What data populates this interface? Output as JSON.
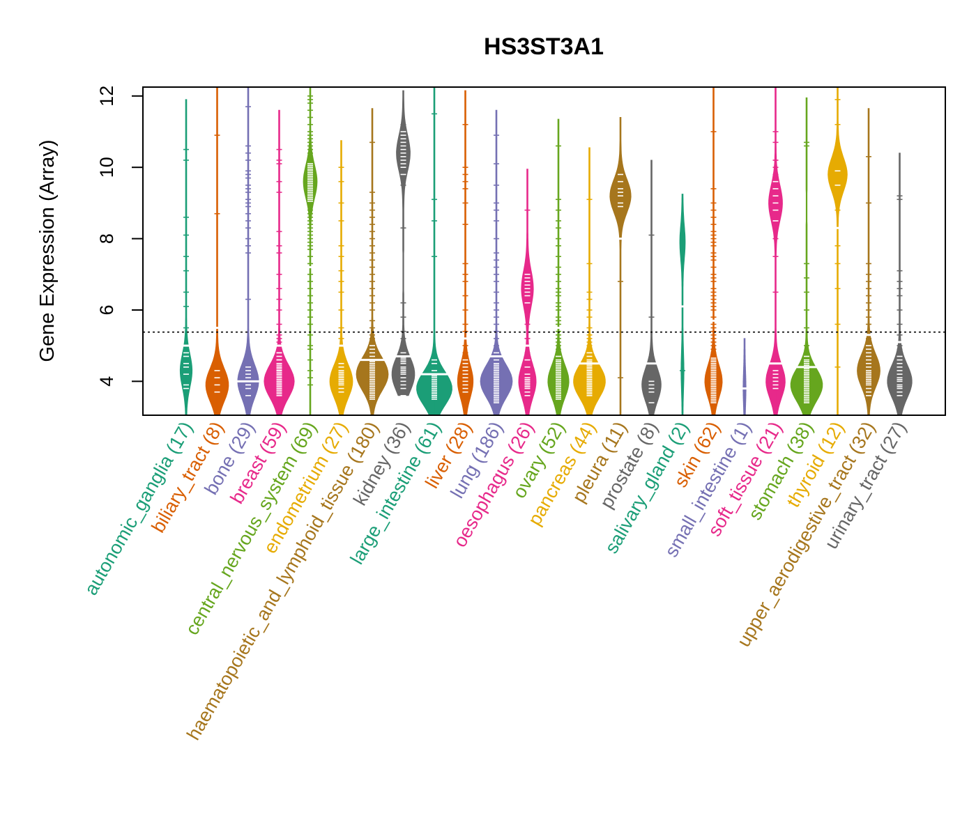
{
  "chart_data": {
    "type": "violin",
    "title": "HS3ST3A1",
    "ylabel": "Gene Expression (Array)",
    "xlabel": "",
    "ylim": [
      3.05,
      12.25
    ],
    "yticks": [
      4,
      6,
      8,
      10,
      12
    ],
    "reference_line": 5.38,
    "grid": false,
    "categories": [
      {
        "name": "autonomic_ganglia",
        "n": 17,
        "label": "autonomic_ganglia (17)",
        "color": "#1B9E77",
        "min": 3.05,
        "max": 11.9,
        "median": 5.0,
        "mode": 4.3,
        "peak": 0.3,
        "points": [
          3.8,
          3.9,
          4.2,
          4.4,
          4.5,
          4.8,
          5.0,
          5.5,
          6.1,
          6.5,
          7.1,
          7.5,
          8.1,
          8.6,
          10.2,
          10.5,
          4.7
        ]
      },
      {
        "name": "biliary_tract",
        "n": 8,
        "label": "biliary_tract (8)",
        "color": "#D95F02",
        "min": 3.05,
        "max": 12.25,
        "median": 5.5,
        "mode": 3.9,
        "peak": 0.6,
        "points": [
          3.7,
          3.9,
          4.1,
          4.3,
          5.5,
          8.7,
          10.9,
          12.3
        ]
      },
      {
        "name": "bone",
        "n": 29,
        "label": "bone (29)",
        "color": "#7570B3",
        "min": 3.05,
        "max": 12.25,
        "median": 4.0,
        "mode": 4.0,
        "peak": 0.55,
        "points": [
          3.6,
          3.8,
          3.9,
          4.0,
          4.1,
          4.2,
          4.3,
          6.3,
          7.6,
          7.8,
          8.0,
          8.3,
          8.5,
          8.7,
          8.9,
          9.0,
          9.1,
          9.3,
          9.4,
          9.5,
          9.7,
          9.8,
          9.9,
          10.2,
          10.4,
          10.6,
          11.7,
          3.9,
          4.4
        ]
      },
      {
        "name": "breast",
        "n": 59,
        "label": "breast (59)",
        "color": "#E7298A",
        "min": 3.05,
        "max": 11.6,
        "median": 5.0,
        "mode": 4.0,
        "peak": 0.8,
        "points": [
          3.6,
          3.7,
          3.8,
          3.9,
          4.0,
          4.0,
          4.1,
          4.2,
          4.3,
          4.4,
          4.5,
          4.6,
          4.7,
          4.8,
          4.9,
          5.0,
          3.65,
          3.75,
          3.85,
          3.95,
          4.05,
          4.15,
          4.25,
          4.35,
          4.45,
          5.1,
          5.3,
          5.6,
          6.0,
          6.3,
          6.6,
          7.0,
          7.6,
          7.8,
          8.2,
          9.3,
          9.6,
          10.1,
          10.2,
          10.5,
          4.0,
          4.1,
          4.2,
          3.9,
          3.8,
          4.6,
          5.2,
          4.3,
          4.5,
          3.7,
          4.9,
          4.1,
          4.0,
          3.9,
          4.2,
          4.4,
          4.3,
          4.6,
          4.8
        ]
      },
      {
        "name": "central_nervous_system",
        "n": 69,
        "label": "central_nervous_system (69)",
        "color": "#66A61E",
        "min": 3.05,
        "max": 12.25,
        "median": 7.2,
        "mode": 9.6,
        "peak": 0.35,
        "points": [
          3.9,
          4.1,
          4.6,
          4.9,
          5.3,
          5.6,
          6.0,
          6.4,
          6.8,
          7.0,
          7.2,
          7.5,
          7.8,
          8.0,
          8.2,
          8.4,
          8.6,
          8.8,
          9.0,
          9.1,
          9.2,
          9.3,
          9.4,
          9.5,
          9.6,
          9.7,
          9.8,
          9.9,
          10.0,
          10.1,
          10.3,
          10.5,
          10.7,
          10.9,
          11.2,
          11.6,
          11.8,
          12.0,
          4.3,
          5.0,
          6.2,
          6.6,
          7.3,
          7.7,
          8.1,
          8.3,
          8.5,
          8.7,
          8.9,
          9.05,
          9.15,
          9.25,
          9.35,
          9.45,
          9.55,
          9.65,
          9.75,
          9.85,
          9.95,
          10.05,
          10.2,
          10.4,
          10.6,
          10.8,
          11.0,
          11.4,
          11.9,
          5.8,
          7.9
        ]
      },
      {
        "name": "endometrium",
        "n": 27,
        "label": "endometrium (27)",
        "color": "#E6AB02",
        "min": 3.05,
        "max": 10.75,
        "median": 5.0,
        "mode": 4.0,
        "peak": 0.6,
        "points": [
          3.7,
          3.8,
          3.9,
          4.0,
          4.1,
          4.2,
          4.3,
          4.4,
          4.5,
          4.8,
          5.0,
          5.5,
          6.0,
          6.5,
          6.8,
          7.1,
          7.5,
          7.8,
          8.5,
          9.0,
          9.6,
          10.0,
          4.05,
          4.15,
          3.95,
          4.25,
          5.2
        ]
      },
      {
        "name": "haematopoietic_and_lymphoid_tissue",
        "n": 180,
        "label": "haematopoietic_and_lymphoid_tissue (180)",
        "color": "#A6761D",
        "min": 3.05,
        "max": 11.65,
        "median": 4.6,
        "mode": 4.2,
        "peak": 0.85,
        "points": [
          3.5,
          3.6,
          3.7,
          3.8,
          3.9,
          4.0,
          4.1,
          4.2,
          4.3,
          4.4,
          4.5,
          4.6,
          4.7,
          4.8,
          4.9,
          5.0,
          5.1,
          5.2,
          5.3,
          5.5,
          5.7,
          6.0,
          6.2,
          6.4,
          6.6,
          6.8,
          7.0,
          7.2,
          7.4,
          7.6,
          7.8,
          8.0,
          8.2,
          8.4,
          8.6,
          8.8,
          9.0,
          9.3,
          10.7,
          3.55,
          3.65,
          3.75,
          3.85,
          3.95,
          4.05,
          4.15,
          4.25,
          4.35,
          4.45,
          4.55
        ]
      },
      {
        "name": "kidney",
        "n": 36,
        "label": "kidney (36)",
        "color": "#666666",
        "min": 3.6,
        "max": 12.15,
        "median": 4.7,
        "mode": 4.2,
        "peak": 0.6,
        "mode2": 10.4,
        "peak2": 0.35,
        "gap": [
          6.5,
          7.6
        ],
        "points": [
          3.6,
          3.8,
          4.0,
          4.1,
          4.2,
          4.3,
          4.4,
          4.5,
          4.6,
          4.7,
          4.8,
          5.0,
          5.2,
          5.4,
          5.8,
          6.2,
          8.3,
          9.5,
          9.8,
          10.0,
          10.1,
          10.2,
          10.3,
          10.4,
          10.5,
          10.6,
          10.7,
          10.8,
          10.9,
          11.0,
          11.2,
          4.25,
          4.35,
          4.55,
          4.65,
          3.9
        ]
      },
      {
        "name": "large_intestine",
        "n": 61,
        "label": "large_intestine (61)",
        "color": "#1B9E77",
        "min": 3.05,
        "max": 12.25,
        "median": 4.2,
        "mode": 3.8,
        "peak": 0.95,
        "points": [
          3.5,
          3.6,
          3.7,
          3.8,
          3.9,
          4.0,
          4.1,
          4.2,
          4.3,
          4.5,
          4.7,
          3.55,
          3.65,
          3.75,
          3.85,
          3.95,
          4.05,
          4.15,
          7.5,
          8.5,
          9.1,
          11.5,
          4.6,
          3.6,
          3.7
        ]
      },
      {
        "name": "liver",
        "n": 28,
        "label": "liver (28)",
        "color": "#D95F02",
        "min": 3.05,
        "max": 12.15,
        "median": 5.2,
        "mode": 4.0,
        "peak": 0.4,
        "points": [
          3.8,
          3.9,
          4.0,
          4.1,
          4.2,
          4.3,
          4.5,
          4.7,
          5.0,
          5.2,
          5.6,
          6.0,
          6.4,
          6.8,
          7.0,
          7.3,
          8.4,
          9.0,
          9.4,
          9.6,
          9.8,
          10.0,
          11.2,
          3.7,
          4.4,
          4.6,
          4.8,
          5.4
        ]
      },
      {
        "name": "lung",
        "n": 186,
        "label": "lung (186)",
        "color": "#7570B3",
        "min": 3.05,
        "max": 11.6,
        "median": 4.7,
        "mode": 4.0,
        "peak": 0.85,
        "points": [
          3.4,
          3.5,
          3.6,
          3.7,
          3.8,
          3.9,
          4.0,
          4.1,
          4.2,
          4.3,
          4.4,
          4.5,
          4.6,
          4.7,
          4.8,
          4.9,
          5.0,
          5.2,
          5.4,
          5.6,
          5.8,
          6.0,
          6.2,
          6.5,
          6.8,
          7.0,
          7.2,
          7.4,
          7.6,
          8.0,
          8.5,
          8.8,
          9.0,
          9.5,
          10.1,
          10.9,
          3.45,
          3.55,
          3.65,
          3.75,
          3.85,
          3.95,
          4.05,
          4.15,
          4.25,
          4.35,
          4.45
        ]
      },
      {
        "name": "oesophagus",
        "n": 26,
        "label": "oesophagus (26)",
        "color": "#E7298A",
        "min": 3.05,
        "max": 9.95,
        "median": 5.0,
        "mode": 4.0,
        "peak": 0.45,
        "mode2": 6.6,
        "peak2": 0.3,
        "points": [
          3.6,
          3.7,
          3.8,
          3.9,
          4.0,
          4.1,
          4.2,
          4.4,
          4.6,
          4.8,
          5.2,
          5.6,
          6.0,
          6.2,
          6.4,
          6.6,
          6.8,
          7.0,
          7.2,
          8.8,
          3.85,
          3.95,
          4.05,
          6.5,
          6.7,
          6.9
        ]
      },
      {
        "name": "ovary",
        "n": 52,
        "label": "ovary (52)",
        "color": "#66A61E",
        "min": 3.05,
        "max": 11.35,
        "median": 5.5,
        "mode": 4.0,
        "peak": 0.55,
        "points": [
          3.5,
          3.6,
          3.7,
          3.8,
          3.9,
          4.0,
          4.1,
          4.2,
          4.3,
          4.4,
          4.5,
          4.6,
          4.7,
          4.8,
          4.9,
          5.0,
          5.2,
          5.4,
          5.6,
          5.8,
          6.0,
          6.2,
          6.4,
          6.6,
          6.8,
          7.0,
          7.2,
          7.5,
          8.0,
          8.3,
          8.5,
          8.8,
          9.1,
          10.6,
          3.55,
          3.65,
          3.75,
          3.85,
          3.95,
          4.05,
          4.15,
          4.25,
          4.35,
          4.45,
          4.55,
          5.1,
          5.3,
          5.5,
          5.7,
          6.1,
          6.5,
          7.8
        ]
      },
      {
        "name": "pancreas",
        "n": 44,
        "label": "pancreas (44)",
        "color": "#E6AB02",
        "min": 3.05,
        "max": 10.55,
        "median": 4.5,
        "mode": 4.0,
        "peak": 0.85,
        "points": [
          3.6,
          3.7,
          3.8,
          3.9,
          4.0,
          4.1,
          4.2,
          4.3,
          4.4,
          4.5,
          4.6,
          4.7,
          4.8,
          4.9,
          5.0,
          5.2,
          5.5,
          5.8,
          6.3,
          6.5,
          7.3,
          9.1,
          3.65,
          3.75,
          3.85,
          3.95,
          4.05,
          4.15,
          4.25,
          4.35,
          4.45,
          4.55,
          3.9,
          4.0,
          4.1,
          3.8,
          4.2,
          4.3,
          3.7,
          4.6,
          4.4,
          5.1,
          5.3,
          6.0
        ]
      },
      {
        "name": "pleura",
        "n": 11,
        "label": "pleura (11)",
        "color": "#A6761D",
        "min": 3.05,
        "max": 11.4,
        "median": 8.0,
        "mode": 9.2,
        "peak": 0.55,
        "points": [
          4.1,
          6.8,
          8.0,
          8.9,
          9.0,
          9.2,
          9.4,
          9.6,
          9.8,
          10.0,
          9.3
        ]
      },
      {
        "name": "prostate",
        "n": 8,
        "label": "prostate (8)",
        "color": "#666666",
        "min": 3.05,
        "max": 10.2,
        "median": 4.5,
        "mode": 3.9,
        "peak": 0.5,
        "points": [
          3.4,
          3.7,
          3.9,
          4.0,
          4.5,
          5.8,
          8.1,
          3.8
        ]
      },
      {
        "name": "salivary_gland",
        "n": 2,
        "label": "salivary_gland (2)",
        "color": "#1B9E77",
        "min": 3.05,
        "max": 9.25,
        "median": 6.1,
        "mode": 7.9,
        "peak": 0.12,
        "mode2": 4.3,
        "peak2": 0.05,
        "points": [
          4.3,
          7.95
        ]
      },
      {
        "name": "skin",
        "n": 62,
        "label": "skin (62)",
        "color": "#D95F02",
        "min": 3.05,
        "max": 12.25,
        "median": 5.7,
        "mode": 4.0,
        "peak": 0.45,
        "points": [
          3.4,
          3.5,
          3.6,
          3.7,
          3.8,
          3.9,
          4.0,
          4.1,
          4.2,
          4.3,
          4.4,
          4.5,
          4.6,
          4.7,
          4.8,
          4.9,
          5.0,
          5.2,
          5.4,
          5.6,
          5.8,
          6.0,
          6.2,
          6.4,
          6.6,
          6.8,
          7.0,
          7.2,
          7.4,
          7.6,
          7.8,
          8.0,
          8.2,
          8.4,
          8.6,
          8.8,
          9.0,
          9.4,
          11.0,
          3.45,
          3.55,
          3.65,
          3.75,
          3.85,
          3.95,
          4.05,
          4.15,
          4.25,
          4.35,
          4.45,
          4.55,
          4.65,
          5.1,
          5.3,
          5.5,
          6.1,
          6.3,
          6.5,
          6.9,
          7.5,
          7.9,
          8.1
        ]
      },
      {
        "name": "small_intestine",
        "n": 1,
        "label": "small_intestine (1)",
        "color": "#7570B3",
        "min": 3.05,
        "max": 5.2,
        "median": 3.8,
        "mode": 3.8,
        "peak": 0.05,
        "points": [
          3.8
        ]
      },
      {
        "name": "soft_tissue",
        "n": 21,
        "label": "soft_tissue (21)",
        "color": "#E7298A",
        "min": 3.05,
        "max": 12.25,
        "median": 4.5,
        "mode": 4.0,
        "peak": 0.5,
        "mode2": 9.0,
        "peak2": 0.35,
        "points": [
          3.8,
          4.0,
          4.1,
          4.2,
          4.5,
          6.5,
          7.5,
          8.0,
          8.5,
          8.8,
          9.0,
          9.2,
          9.4,
          9.6,
          9.8,
          10.0,
          10.2,
          10.7,
          11.0,
          3.9,
          4.3
        ]
      },
      {
        "name": "stomach",
        "n": 38,
        "label": "stomach (38)",
        "color": "#66A61E",
        "min": 3.05,
        "max": 11.95,
        "median": 4.4,
        "mode": 3.9,
        "peak": 0.85,
        "gap": [
          8.4,
          9.3
        ],
        "points": [
          3.4,
          3.5,
          3.6,
          3.7,
          3.8,
          3.9,
          4.0,
          4.1,
          4.2,
          4.3,
          4.4,
          4.5,
          4.6,
          4.7,
          4.8,
          5.0,
          5.5,
          6.0,
          6.5,
          6.9,
          7.3,
          10.6,
          10.7,
          3.45,
          3.55,
          3.65,
          3.75,
          3.85,
          3.95,
          4.05,
          4.15,
          4.25,
          4.35,
          4.45,
          4.55,
          3.9,
          4.0,
          4.2
        ]
      },
      {
        "name": "thyroid",
        "n": 12,
        "label": "thyroid (12)",
        "color": "#E6AB02",
        "min": 3.05,
        "max": 12.25,
        "median": 8.3,
        "mode": 9.8,
        "peak": 0.5,
        "points": [
          4.4,
          5.6,
          6.6,
          7.3,
          8.3,
          8.8,
          9.5,
          9.9,
          10.5,
          11.2,
          11.9,
          7.8
        ]
      },
      {
        "name": "upper_aerodigestive_tract",
        "n": 32,
        "label": "upper_aerodigestive_tract (32)",
        "color": "#A6761D",
        "min": 3.05,
        "max": 11.65,
        "median": 5.3,
        "mode": 4.3,
        "peak": 0.6,
        "points": [
          3.6,
          3.7,
          3.8,
          3.9,
          4.0,
          4.1,
          4.2,
          4.3,
          4.4,
          4.5,
          4.6,
          4.7,
          4.8,
          4.9,
          5.0,
          5.2,
          5.4,
          5.6,
          5.8,
          6.0,
          6.2,
          6.4,
          6.6,
          6.8,
          7.0,
          7.3,
          9.0,
          10.3,
          3.95,
          4.05,
          4.15,
          4.25
        ]
      },
      {
        "name": "urinary_tract",
        "n": 27,
        "label": "urinary_tract (27)",
        "color": "#666666",
        "min": 3.05,
        "max": 10.4,
        "median": 5.1,
        "mode": 4.0,
        "peak": 0.65,
        "points": [
          3.6,
          3.7,
          3.8,
          3.9,
          4.0,
          4.1,
          4.2,
          4.3,
          4.4,
          4.5,
          4.6,
          4.7,
          4.8,
          4.9,
          5.0,
          5.1,
          5.3,
          5.6,
          6.0,
          6.4,
          6.6,
          6.8,
          7.1,
          9.1,
          9.2,
          3.85,
          4.05
        ]
      }
    ]
  }
}
